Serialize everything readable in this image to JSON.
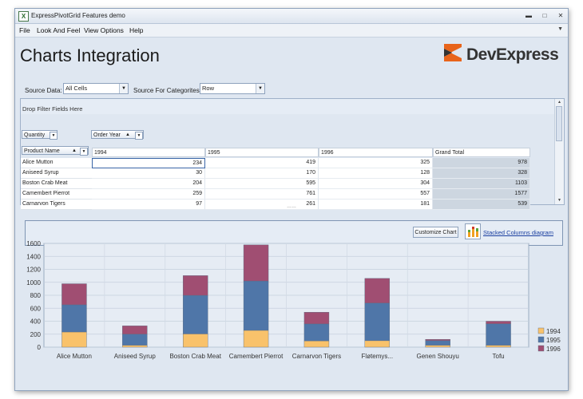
{
  "window": {
    "title": "ExpressPivotGrid Features demo",
    "app_icon": "excel-x-icon"
  },
  "menu": [
    {
      "label": "File",
      "key": "F"
    },
    {
      "label": "Look And Feel",
      "key": "L"
    },
    {
      "label": "View Options",
      "key": "O"
    },
    {
      "label": "Help",
      "key": "H"
    }
  ],
  "page_title": "Charts Integration",
  "logo": {
    "text": "DevExpress",
    "accent_color": "#e8641b"
  },
  "controls": {
    "source_data_label": "Source Data:",
    "source_data_value": "All Cells",
    "source_categories_label": "Source For Categorites:",
    "source_categories_value": "Row"
  },
  "pivot": {
    "drop_filter_text": "Drop Filter Fields Here",
    "data_field": "Quantity",
    "column_field": "Order Year",
    "row_field": "Product Name",
    "columns": [
      "1994",
      "1995",
      "1996",
      "Grand Total"
    ],
    "rows": [
      {
        "name": "Alice Mutton",
        "v1994": "234",
        "v1995": "419",
        "v1996": "325",
        "total": "978"
      },
      {
        "name": "Aniseed Syrup",
        "v1994": "30",
        "v1995": "170",
        "v1996": "128",
        "total": "328"
      },
      {
        "name": "Boston Crab Meat",
        "v1994": "204",
        "v1995": "595",
        "v1996": "304",
        "total": "1103"
      },
      {
        "name": "Camembert Pierrot",
        "v1994": "259",
        "v1995": "761",
        "v1996": "557",
        "total": "1577"
      },
      {
        "name": "Carnarvon Tigers",
        "v1994": "97",
        "v1995": "261",
        "v1996": "181",
        "total": "539"
      }
    ]
  },
  "chart_toolbar": {
    "customize_label": "Customize Chart",
    "diagram_link": "Stacked Columns diagram"
  },
  "chart_data": {
    "type": "bar",
    "stacked": true,
    "categories": [
      "Alice Mutton",
      "Aniseed Syrup",
      "Boston Crab Meat",
      "Camembert Pierrot",
      "Carnarvon Tigers",
      "Fløtemys...",
      "Genen Shouyu",
      "Tofu"
    ],
    "series": [
      {
        "name": "1994",
        "color": "#f9c26b",
        "values": [
          234,
          30,
          204,
          259,
          97,
          100,
          30,
          30
        ]
      },
      {
        "name": "1995",
        "color": "#4f76a8",
        "values": [
          419,
          170,
          595,
          761,
          261,
          580,
          70,
          330
        ]
      },
      {
        "name": "1996",
        "color": "#a04e72",
        "values": [
          325,
          128,
          304,
          557,
          181,
          380,
          20,
          40
        ]
      }
    ],
    "ylim": [
      0,
      1600
    ],
    "yticks": [
      "0",
      "200",
      "400",
      "600",
      "800",
      "1000",
      "1200",
      "1400",
      "1600"
    ],
    "grid": true,
    "legend": "right"
  }
}
